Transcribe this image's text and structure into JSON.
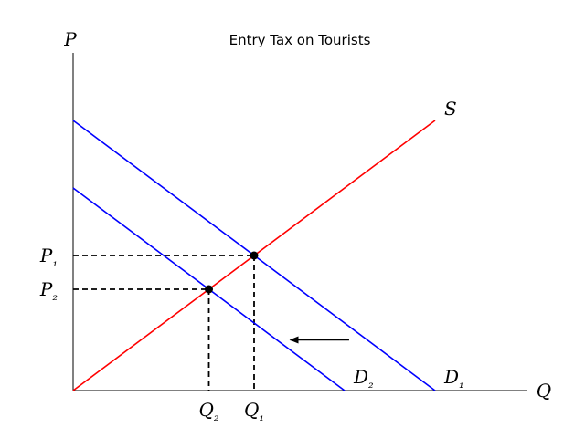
{
  "chart_data": {
    "type": "line",
    "title": "Entry Tax on Tourists",
    "x_axis_label": "Q",
    "y_axis_label": "P",
    "xlim": [
      0,
      10
    ],
    "ylim": [
      0,
      10
    ],
    "grid": false,
    "legend": "none",
    "series": [
      {
        "name": "S",
        "color": "#ff0000",
        "x": [
          0,
          8
        ],
        "y": [
          0,
          8
        ]
      },
      {
        "name": "D₁",
        "color": "#0000ff",
        "x": [
          0,
          8
        ],
        "y": [
          8,
          0
        ]
      },
      {
        "name": "D₂",
        "color": "#0000ff",
        "x": [
          0,
          6
        ],
        "y": [
          6,
          0
        ]
      }
    ],
    "equilibria": [
      {
        "x": 4,
        "y": 4,
        "x_label": "Q₁",
        "y_label": "P₁"
      },
      {
        "x": 3,
        "y": 3,
        "x_label": "Q₂",
        "y_label": "P₂"
      }
    ],
    "arrow": {
      "from": [
        6.1,
        1.5
      ],
      "to": [
        4.8,
        1.5
      ],
      "direction": "left"
    }
  }
}
